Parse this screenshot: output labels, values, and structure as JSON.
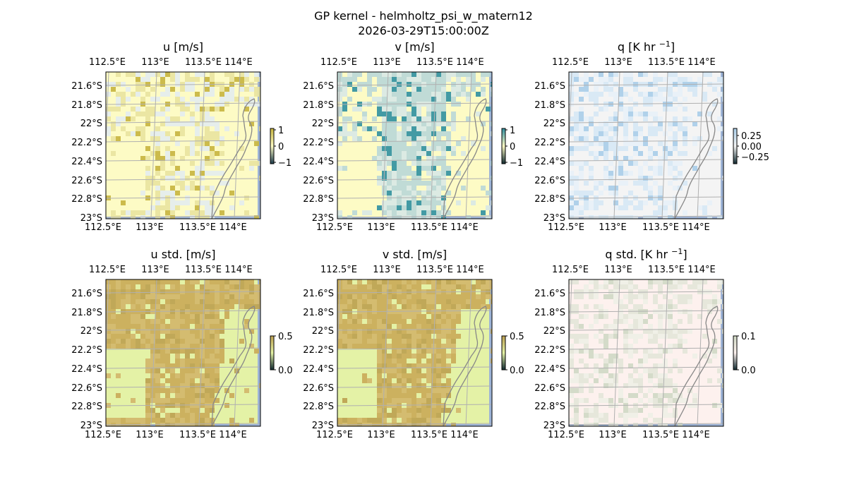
{
  "figure": {
    "title_line1": "GP kernel - helmholtz_psi_w_matern12",
    "title_line2": "2026-03-29T15:00:00Z"
  },
  "map": {
    "lon_ticks": [
      "112.5°E",
      "113°E",
      "113.5°E",
      "114°E"
    ],
    "lat_ticks": [
      "21.6°S",
      "21.8°S",
      "22°S",
      "22.2°S",
      "22.4°S",
      "22.6°S",
      "22.8°S",
      "23°S"
    ],
    "ocean_color": "#9db3d6",
    "coast_color": "#888888",
    "grid_color": "#b0b0b0"
  },
  "panels": [
    {
      "id": "u",
      "title_main": "u [m/s]",
      "title_sup": "",
      "title_tail": "",
      "colorbar_ticks": [
        "1",
        "0",
        "−1"
      ],
      "colors": {
        "fill": "#fdfbc5",
        "field": "#e9e39f",
        "strong": "#c6b43e",
        "alt": "#e3ecee"
      }
    },
    {
      "id": "v",
      "title_main": "v [m/s]",
      "title_sup": "",
      "title_tail": "",
      "colors": {
        "fill": "#fdfbc5",
        "field": "#b9d7d7",
        "strong": "#2f8fa0",
        "alt": "#d8e8e5"
      },
      "colorbar_ticks": [
        "1",
        "0",
        "−1"
      ]
    },
    {
      "id": "q",
      "title_main": "q [K hr ",
      "title_sup": "−1",
      "title_tail": "]",
      "colorbar_ticks": [
        "0.25",
        "0.00",
        "−0.25"
      ],
      "colors": {
        "fill": "#f4f4f4",
        "field": "#d6e8f5",
        "strong": "#a9cde9",
        "alt": "#e8f1f8"
      }
    },
    {
      "id": "u_std",
      "title_main": "u std. [m/s]",
      "title_sup": "",
      "title_tail": "",
      "colorbar_ticks": [
        "0.5",
        "0.0"
      ],
      "colors": {
        "fill": "#e4f2a6",
        "field": "#c9aa58",
        "strong": "#bba050",
        "alt": "#d2b66a"
      }
    },
    {
      "id": "v_std",
      "title_main": "v std. [m/s]",
      "title_sup": "",
      "title_tail": "",
      "colorbar_ticks": [
        "0.5",
        "0.0"
      ],
      "colors": {
        "fill": "#e4f2a6",
        "field": "#c9aa58",
        "strong": "#bba050",
        "alt": "#d2b66a"
      }
    },
    {
      "id": "q_std",
      "title_main": "q std. [K hr ",
      "title_sup": "−1",
      "title_tail": "]",
      "colorbar_ticks": [
        "0.1",
        "0.0"
      ],
      "colors": {
        "fill": "#fdf1ee",
        "field": "#e3e5d8",
        "strong": "#cfd8c4",
        "alt": "#eef0e6"
      }
    }
  ]
}
